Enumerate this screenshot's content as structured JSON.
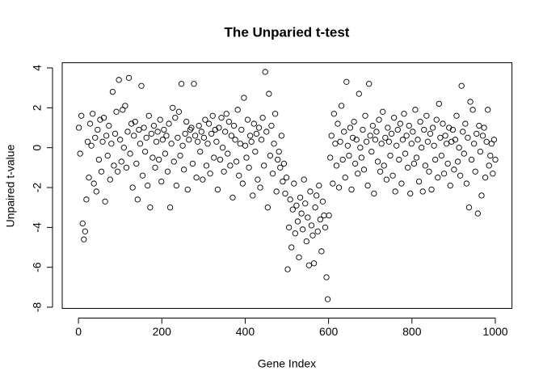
{
  "chart_data": {
    "type": "scatter",
    "title": "The Unparied t-test",
    "x_label": "Gene Index",
    "y_label": "Unpaired t-value",
    "color": "#000000",
    "xlim": [
      -38.96,
      1039.96
    ],
    "ylim": [
      -8.06,
      4.26
    ],
    "xticks": [
      0,
      200,
      400,
      600,
      800,
      1000
    ],
    "yticks": [
      -8,
      -6,
      -4,
      -2,
      0,
      2,
      4
    ],
    "x": [
      1,
      4,
      7,
      10,
      13,
      16,
      19,
      22,
      25,
      28,
      31,
      34,
      37,
      40,
      43,
      46,
      49,
      52,
      55,
      58,
      61,
      64,
      67,
      70,
      73,
      76,
      79,
      82,
      85,
      88,
      91,
      94,
      97,
      100,
      103,
      106,
      109,
      112,
      115,
      118,
      121,
      124,
      127,
      130,
      133,
      136,
      139,
      142,
      145,
      148,
      151,
      154,
      157,
      160,
      163,
      166,
      169,
      172,
      175,
      178,
      181,
      184,
      187,
      190,
      193,
      196,
      199,
      202,
      205,
      208,
      211,
      214,
      217,
      220,
      223,
      226,
      229,
      232,
      235,
      238,
      241,
      244,
      247,
      250,
      253,
      256,
      259,
      262,
      265,
      268,
      271,
      274,
      277,
      280,
      283,
      286,
      289,
      292,
      295,
      298,
      301,
      304,
      307,
      310,
      313,
      316,
      319,
      322,
      325,
      328,
      331,
      334,
      337,
      340,
      343,
      346,
      349,
      352,
      355,
      358,
      361,
      364,
      367,
      370,
      373,
      376,
      379,
      382,
      385,
      388,
      391,
      394,
      397,
      400,
      403,
      406,
      409,
      412,
      415,
      418,
      421,
      424,
      427,
      430,
      433,
      436,
      439,
      442,
      445,
      448,
      451,
      454,
      457,
      460,
      463,
      466,
      469,
      472,
      475,
      478,
      481,
      484,
      487,
      490,
      493,
      496,
      499,
      502,
      505,
      508,
      511,
      514,
      517,
      520,
      523,
      526,
      529,
      532,
      535,
      538,
      541,
      544,
      547,
      550,
      553,
      556,
      559,
      562,
      565,
      568,
      571,
      574,
      577,
      580,
      583,
      586,
      589,
      592,
      595,
      598,
      601,
      604,
      607,
      610,
      613,
      616,
      619,
      622,
      625,
      628,
      631,
      634,
      637,
      640,
      643,
      646,
      649,
      652,
      655,
      658,
      661,
      664,
      667,
      670,
      673,
      676,
      679,
      682,
      685,
      688,
      691,
      694,
      697,
      700,
      703,
      706,
      709,
      712,
      715,
      718,
      721,
      724,
      727,
      730,
      733,
      736,
      739,
      742,
      745,
      748,
      751,
      754,
      757,
      760,
      763,
      766,
      769,
      772,
      775,
      778,
      781,
      784,
      787,
      790,
      793,
      796,
      799,
      802,
      805,
      808,
      811,
      814,
      817,
      820,
      823,
      826,
      829,
      832,
      835,
      838,
      841,
      844,
      847,
      850,
      853,
      856,
      859,
      862,
      865,
      868,
      871,
      874,
      877,
      880,
      883,
      886,
      889,
      892,
      895,
      898,
      901,
      904,
      907,
      910,
      913,
      916,
      919,
      922,
      925,
      928,
      931,
      934,
      937,
      940,
      943,
      946,
      949,
      952,
      955,
      958,
      961,
      964,
      967,
      970,
      973,
      976,
      979,
      982,
      985,
      988,
      991,
      994,
      997,
      1000
    ],
    "values": [
      1.0,
      -0.3,
      1.6,
      -3.8,
      -4.6,
      -4.2,
      -2.6,
      0.3,
      -1.5,
      1.2,
      0.1,
      1.7,
      -1.8,
      0.5,
      -2.2,
      0.9,
      -0.6,
      1.4,
      -1.2,
      0.3,
      1.5,
      -2.7,
      0.6,
      -0.4,
      1.1,
      -1.6,
      0.2,
      2.8,
      -0.9,
      0.7,
      1.8,
      -1.2,
      3.4,
      0.4,
      -0.7,
      1.9,
      0.0,
      2.1,
      -1.0,
      0.8,
      3.5,
      -0.3,
      1.2,
      -2.0,
      0.6,
      1.3,
      -0.8,
      -2.6,
      0.9,
      0.2,
      3.1,
      -1.4,
      1.0,
      -0.2,
      0.5,
      -1.9,
      1.6,
      -3.0,
      0.7,
      -0.5,
      1.1,
      -1.0,
      0.3,
      0.8,
      -0.6,
      1.4,
      -1.7,
      0.4,
      0.9,
      -0.3,
      0.6,
      -1.2,
      1.2,
      -3.0,
      0.2,
      2.0,
      -0.7,
      1.5,
      -1.9,
      0.5,
      1.8,
      -0.4,
      3.2,
      0.1,
      -1.1,
      0.7,
      1.3,
      -2.1,
      0.4,
      0.9,
      1.0,
      -0.8,
      3.2,
      0.6,
      -1.5,
      0.3,
      1.1,
      -0.2,
      0.8,
      -1.6,
      0.5,
      1.4,
      -0.9,
      0.2,
      1.2,
      -1.3,
      0.7,
      1.6,
      -0.5,
      0.9,
      0.3,
      -2.1,
      1.0,
      -0.6,
      1.5,
      0.0,
      -1.2,
      0.8,
      1.7,
      -0.3,
      1.3,
      -0.9,
      0.6,
      -2.5,
      1.1,
      0.4,
      -0.7,
      1.9,
      -1.4,
      0.2,
      0.9,
      -1.8,
      2.5,
      0.1,
      -0.5,
      1.4,
      -1.0,
      0.6,
      0.3,
      -2.4,
      1.2,
      -0.2,
      0.7,
      -1.6,
      1.0,
      -2.0,
      0.4,
      1.5,
      -0.9,
      3.8,
      0.8,
      -3.0,
      2.7,
      -0.4,
      1.1,
      -1.3,
      0.2,
      1.7,
      -2.2,
      -0.6,
      -0.2,
      -1.0,
      0.6,
      -1.7,
      -0.8,
      -2.3,
      -1.5,
      -6.1,
      -4.0,
      -2.6,
      -5.0,
      -3.1,
      -1.8,
      -4.3,
      -2.9,
      -3.7,
      -5.5,
      -2.5,
      -3.3,
      -4.1,
      -1.6,
      -2.8,
      -4.7,
      -3.5,
      -5.9,
      -2.2,
      -3.9,
      -4.4,
      -5.8,
      -3.0,
      -2.4,
      -4.2,
      -1.9,
      -3.6,
      -5.2,
      -2.7,
      -3.4,
      -4.0,
      -6.5,
      -7.6,
      -3.4,
      -0.5,
      0.6,
      -1.8,
      1.7,
      0.2,
      -0.9,
      1.2,
      -2.0,
      0.3,
      2.1,
      -0.6,
      0.8,
      -1.5,
      3.3,
      0.1,
      -0.4,
      1.0,
      -2.1,
      0.5,
      1.3,
      -0.8,
      0.4,
      -1.3,
      2.7,
      0.0,
      -0.5,
      0.9,
      -1.1,
      1.6,
      0.3,
      -1.9,
      3.2,
      0.6,
      -0.2,
      1.1,
      -2.3,
      0.4,
      0.8,
      -0.7,
      1.4,
      -1.2,
      0.2,
      1.8,
      -0.9,
      0.5,
      -1.6,
      1.0,
      0.3,
      -0.4,
      0.7,
      -1.4,
      1.5,
      -2.2,
      0.1,
      0.9,
      -0.6,
      1.2,
      -1.8,
      0.4,
      1.7,
      -0.3,
      0.6,
      -1.0,
      1.1,
      -2.3,
      0.2,
      0.8,
      -0.8,
      1.9,
      -0.5,
      0.4,
      -1.7,
      1.3,
      0.0,
      -2.2,
      0.9,
      -0.9,
      1.6,
      0.3,
      -1.2,
      0.7,
      -2.1,
      1.0,
      0.1,
      -0.6,
      1.4,
      -1.5,
      2.2,
      0.5,
      -0.4,
      1.2,
      -1.3,
      0.6,
      0.2,
      -0.8,
      1.0,
      -1.9,
      0.3,
      0.9,
      -1.1,
      0.4,
      1.6,
      -0.7,
      0.0,
      -1.4,
      3.1,
      0.8,
      -0.3,
      1.2,
      -1.8,
      0.5,
      -3.0,
      2.3,
      -0.6,
      1.9,
      0.2,
      -1.2,
      0.7,
      -3.3,
      1.1,
      -0.2,
      -2.4,
      0.6,
      1.0,
      -1.5,
      0.3,
      1.9,
      -0.9,
      -0.4,
      0.2,
      -1.3,
      0.4,
      -0.6
    ]
  }
}
